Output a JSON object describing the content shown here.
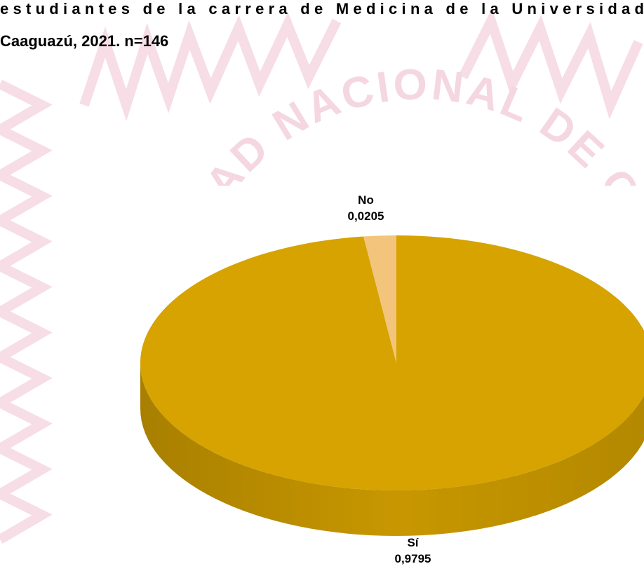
{
  "chart_data": {
    "type": "pie",
    "title_lines": [
      "estudiantes de la carrera de Medicina de la Universidad",
      "Caaguazú, 2021. n=146"
    ],
    "watermark": "DAD NACIONAL DE CA",
    "categories": [
      "Sí",
      "No"
    ],
    "values": [
      0.9795,
      0.0205
    ],
    "value_labels": [
      "0,9795",
      "0,0205"
    ],
    "colors": [
      "#d6a300",
      "#f3c47c"
    ],
    "three_d": true
  }
}
